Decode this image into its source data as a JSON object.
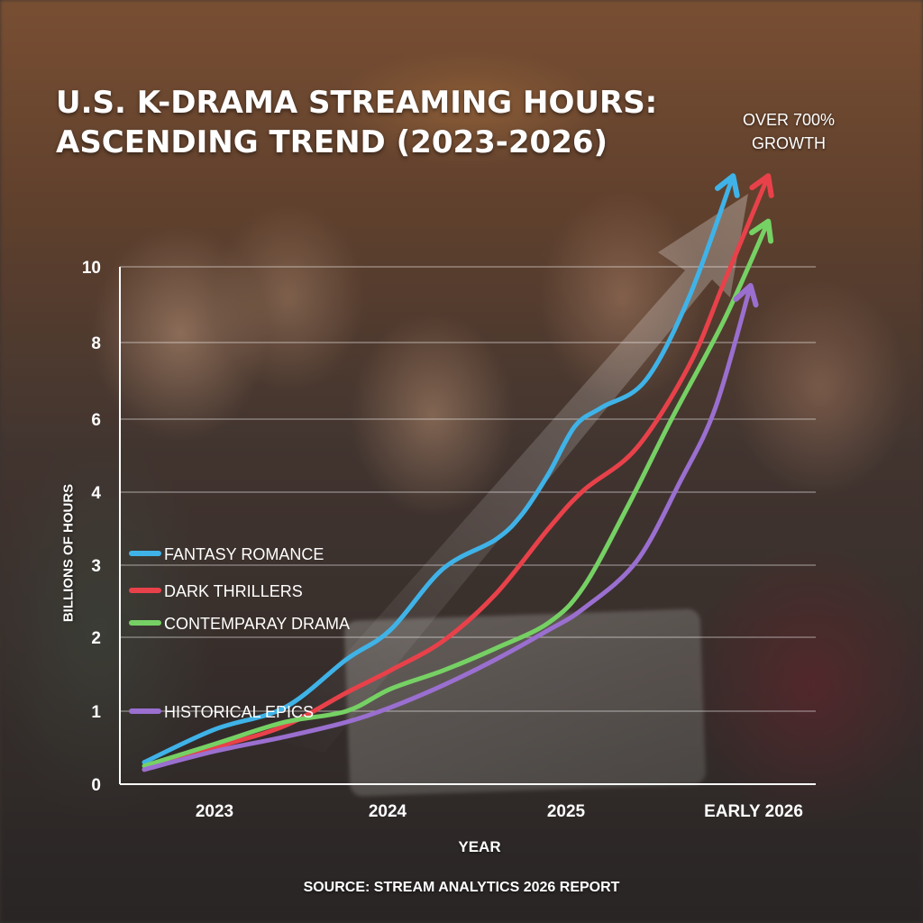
{
  "chart_data": {
    "type": "line",
    "title": [
      "U.S. K-DRAMA STREAMING HOURS:",
      "ASCENDING TREND (2023-2026)"
    ],
    "annotation": [
      "OVER 700%",
      "GROWTH"
    ],
    "xlabel": "YEAR",
    "ylabel": "BILLIONS OF HOURS",
    "source": "SOURCE: STREAM ANALYTICS 2026 REPORT",
    "categories": [
      "2023",
      "2024",
      "2025",
      "EARLY 2026"
    ],
    "y_ticks": [
      0,
      1,
      2,
      3,
      4,
      6,
      8,
      10
    ],
    "y_scale": "non-linear (ticks 0,1,2,3,4 then 6,8,10 at equal spacing)",
    "ylim": [
      0,
      10
    ],
    "grid": true,
    "legend_position": "left-center",
    "series": [
      {
        "name": "FANTASY ROMANCE",
        "color": "#3fb3e8",
        "x": [
          2022.6,
          2023.0,
          2023.4,
          2023.75,
          2024.0,
          2024.3,
          2024.6,
          2024.75,
          2024.9,
          2025.05,
          2025.2,
          2025.45,
          2025.7,
          2025.95
        ],
        "y": [
          0.3,
          0.75,
          1.05,
          1.7,
          2.1,
          2.95,
          3.35,
          3.7,
          4.5,
          5.8,
          6.3,
          7.0,
          9.2,
          12.4
        ],
        "arrow": true
      },
      {
        "name": "DARK THRILLERS",
        "color": "#e8414a",
        "x": [
          2022.6,
          2023.0,
          2023.4,
          2023.75,
          2024.0,
          2024.3,
          2024.6,
          2024.9,
          2025.1,
          2025.4,
          2025.7,
          2025.9,
          2026.15
        ],
        "y": [
          0.2,
          0.5,
          0.8,
          1.25,
          1.55,
          1.95,
          2.6,
          3.5,
          4.05,
          5.2,
          7.4,
          9.6,
          12.4
        ],
        "arrow": true
      },
      {
        "name": "CONTEMPARAY DRAMA",
        "color": "#76d164",
        "x": [
          2022.6,
          2023.0,
          2023.4,
          2023.75,
          2024.0,
          2024.3,
          2024.6,
          2024.9,
          2025.1,
          2025.35,
          2025.6,
          2025.9,
          2026.15
        ],
        "y": [
          0.25,
          0.55,
          0.85,
          1.0,
          1.3,
          1.55,
          1.85,
          2.2,
          2.7,
          3.8,
          6.0,
          8.6,
          11.2
        ],
        "arrow": true
      },
      {
        "name": "HISTORICAL EPICS",
        "color": "#9a6fd0",
        "x": [
          2022.6,
          2023.0,
          2023.4,
          2023.75,
          2024.0,
          2024.3,
          2024.6,
          2024.9,
          2025.1,
          2025.4,
          2025.65,
          2025.85,
          2026.05
        ],
        "y": [
          0.2,
          0.45,
          0.65,
          0.85,
          1.05,
          1.35,
          1.7,
          2.1,
          2.4,
          3.05,
          4.3,
          6.3,
          9.5
        ],
        "arrow": true
      }
    ]
  }
}
